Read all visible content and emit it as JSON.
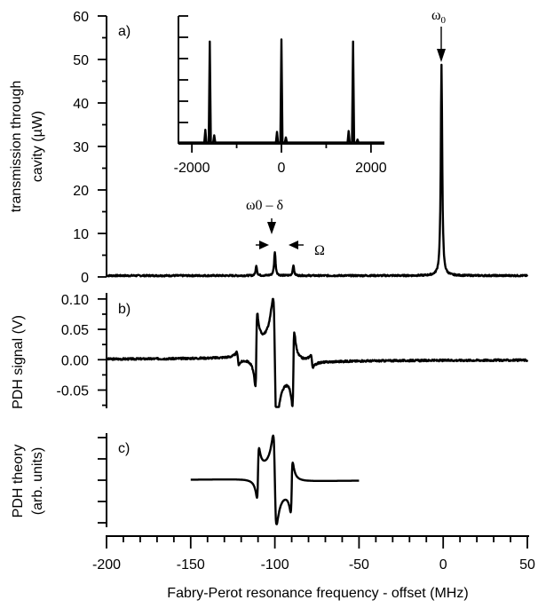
{
  "chart_data": [
    {
      "panel": "a)",
      "type": "line",
      "ylabel_line1": "transmission through",
      "ylabel_line2": "cavity (µW)",
      "ylim": [
        0,
        60
      ],
      "yticks": [
        0,
        10,
        20,
        30,
        40,
        50,
        60
      ],
      "xlim": [
        -200,
        50
      ],
      "baseline": 0.3,
      "peaks": [
        {
          "x": -111,
          "y": 2.4,
          "w": 0.45
        },
        {
          "x": -100,
          "y": 5.5,
          "w": 0.5
        },
        {
          "x": -89,
          "y": 2.5,
          "w": 0.45
        },
        {
          "x": -1,
          "y": 48.5,
          "w": 0.5
        }
      ],
      "annotations": {
        "omega0": "ω0",
        "omega0_minus_delta": "ω0 – δ",
        "Omega": "Ω"
      },
      "inset": {
        "type": "line",
        "xlim": [
          -2300,
          2300
        ],
        "xticks": [
          -2000,
          0,
          2000
        ],
        "xtick_labels": [
          "-2000",
          "0",
          "2000"
        ],
        "ylim": [
          30,
          60
        ],
        "peaks": [
          {
            "x": -1700,
            "y": 33.3
          },
          {
            "x": -1600,
            "y": 54.0
          },
          {
            "x": -1500,
            "y": 32.0
          },
          {
            "x": -100,
            "y": 32.8
          },
          {
            "x": 0,
            "y": 54.5
          },
          {
            "x": 100,
            "y": 31.5
          },
          {
            "x": 1500,
            "y": 33.0
          },
          {
            "x": 1600,
            "y": 54.0
          },
          {
            "x": 1700,
            "y": 31.0
          }
        ]
      }
    },
    {
      "panel": "b)",
      "type": "line",
      "ylabel": "PDH signal (V)",
      "ylim": [
        -0.08,
        0.11
      ],
      "yticks": [
        -0.05,
        0.0,
        0.05,
        0.1
      ],
      "ytick_labels": [
        "-0.05",
        "0.00",
        "0.05",
        "0.10"
      ],
      "xlim": [
        -200,
        50
      ]
    },
    {
      "panel": "c)",
      "type": "line",
      "ylabel_line1": "PDH theory",
      "ylabel_line2": "(arb. units)",
      "x_range_plotted": [
        -150,
        -50
      ],
      "xlim": [
        -200,
        50
      ]
    }
  ],
  "shared_x_axis": {
    "xlabel": "Fabry-Perot resonance frequency - offset (MHz)",
    "xticks": [
      -200,
      -150,
      -100,
      -50,
      0,
      50
    ],
    "xtick_labels": [
      "-200",
      "-150",
      "-100",
      "-50",
      "0",
      "50"
    ]
  }
}
